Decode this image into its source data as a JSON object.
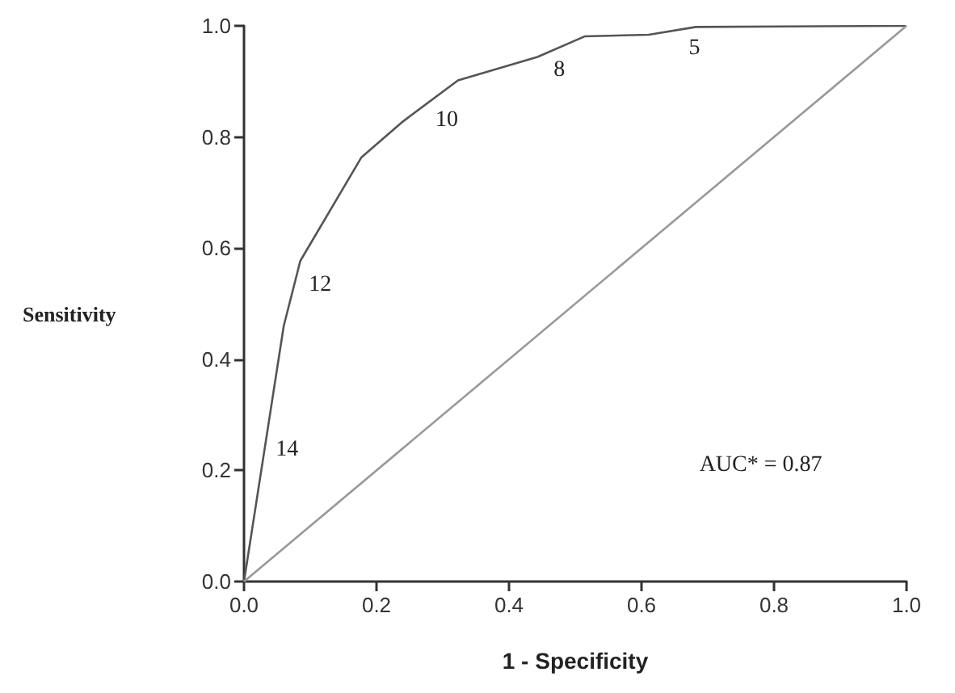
{
  "chart_data": {
    "type": "line",
    "xlabel": "1 - Specificity",
    "ylabel": "Sensitivity",
    "series": [
      {
        "color": "#555555",
        "x": [
          0,
          0.06,
          0.085,
          0.177,
          0.24,
          0.323,
          0.443,
          0.514,
          0.611,
          0.682,
          1
        ],
        "values": [
          0,
          0.46,
          0.577,
          0.763,
          0.828,
          0.902,
          0.944,
          0.981,
          0.984,
          0.998,
          1
        ]
      },
      {
        "color": "#999999",
        "x": [
          0,
          1
        ],
        "values": [
          0,
          1
        ]
      }
    ],
    "annotations": [
      "14",
      "12",
      "10",
      "8",
      "5",
      "AUC* = 0.87"
    ],
    "xlim": [
      0,
      1
    ],
    "ylim": [
      0,
      1
    ],
    "xticks": [
      {
        "value": 0,
        "label": "0.0"
      },
      0.2,
      0.4,
      0.6,
      0.8,
      {
        "value": 1,
        "label": "1.0"
      }
    ],
    "yticks": [
      {
        "value": 0,
        "label": "0.0"
      },
      0.2,
      0.4,
      0.6,
      0.8,
      {
        "value": 1,
        "label": "1.0"
      }
    ],
    "grid": false,
    "marker": "none",
    "line_style": "solid"
  }
}
